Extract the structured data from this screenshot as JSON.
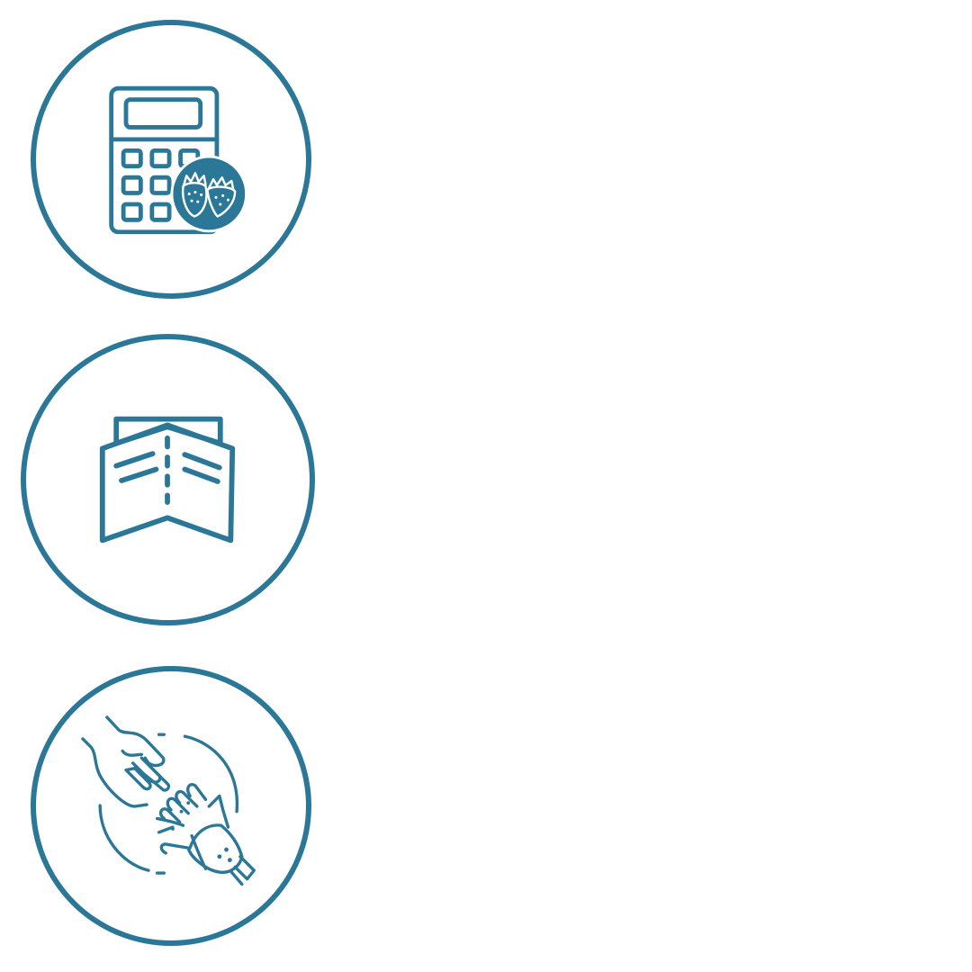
{
  "theme": {
    "accent": "#2b7797",
    "background": "#ffffff"
  },
  "icons": [
    {
      "name": "calculator-strawberry-icon"
    },
    {
      "name": "open-book-icon"
    },
    {
      "name": "handshake-robot-icon"
    }
  ]
}
